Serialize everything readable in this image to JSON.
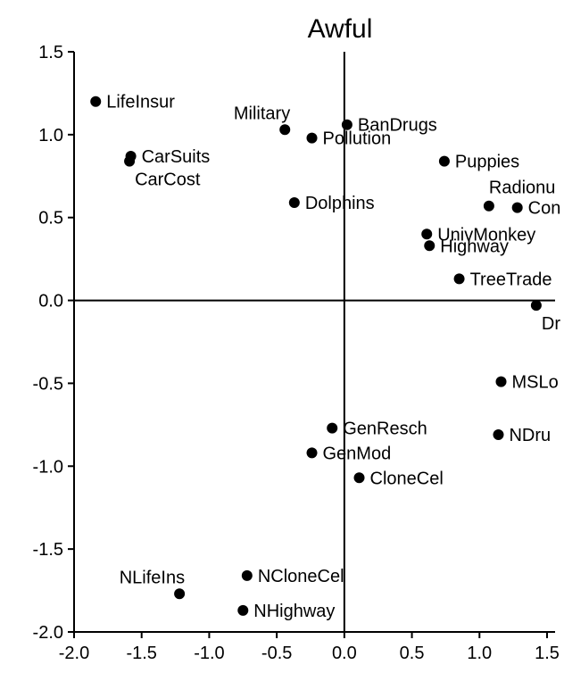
{
  "chart_data": {
    "type": "scatter",
    "title": "Awful",
    "xlabel": "",
    "ylabel": "",
    "xlim": [
      -2.0,
      1.5
    ],
    "ylim": [
      -2.0,
      1.5
    ],
    "x_ticks": [
      "-2.0",
      "-1.5",
      "-1.0",
      "-0.5",
      "0.0",
      "0.5",
      "1.0",
      "1.5"
    ],
    "y_ticks": [
      "1.5",
      "1.0",
      "0.5",
      "0.0",
      "-0.5",
      "-1.0",
      "-1.5",
      "-2.0"
    ],
    "grid": false,
    "marker_color": "#000000",
    "points": [
      {
        "label": "LifeInsur",
        "x": -1.84,
        "y": 1.2,
        "label_pos": "right"
      },
      {
        "label": "CarSuits",
        "x": -1.58,
        "y": 0.87,
        "label_pos": "right"
      },
      {
        "label": "CarCost",
        "x": -1.59,
        "y": 0.84,
        "label_pos": "below-right"
      },
      {
        "label": "Military",
        "x": -0.44,
        "y": 1.03,
        "label_pos": "above-left"
      },
      {
        "label": "BanDrugs",
        "x": 0.02,
        "y": 1.06,
        "label_pos": "right"
      },
      {
        "label": "Pollution",
        "x": -0.24,
        "y": 0.98,
        "label_pos": "right"
      },
      {
        "label": "Dolphins",
        "x": -0.37,
        "y": 0.59,
        "label_pos": "right"
      },
      {
        "label": "Puppies",
        "x": 0.74,
        "y": 0.84,
        "label_pos": "right"
      },
      {
        "label": "Radionu",
        "x": 1.07,
        "y": 0.57,
        "label_pos": "above-right"
      },
      {
        "label": "Con",
        "x": 1.28,
        "y": 0.56,
        "label_pos": "right"
      },
      {
        "label": "UnivMonkey",
        "x": 0.61,
        "y": 0.4,
        "label_pos": "right"
      },
      {
        "label": "Highway",
        "x": 0.63,
        "y": 0.33,
        "label_pos": "right"
      },
      {
        "label": "TreeTrade",
        "x": 0.85,
        "y": 0.13,
        "label_pos": "right"
      },
      {
        "label": "Dr",
        "x": 1.42,
        "y": -0.03,
        "label_pos": "below-right"
      },
      {
        "label": "MSLo",
        "x": 1.16,
        "y": -0.49,
        "label_pos": "right"
      },
      {
        "label": "GenResch",
        "x": -0.09,
        "y": -0.77,
        "label_pos": "right"
      },
      {
        "label": "NDru",
        "x": 1.14,
        "y": -0.81,
        "label_pos": "right"
      },
      {
        "label": "GenMod",
        "x": -0.24,
        "y": -0.92,
        "label_pos": "right"
      },
      {
        "label": "CloneCel",
        "x": 0.11,
        "y": -1.07,
        "label_pos": "right"
      },
      {
        "label": "NLifeIns",
        "x": -1.22,
        "y": -1.77,
        "label_pos": "above-left"
      },
      {
        "label": "NCloneCel",
        "x": -0.72,
        "y": -1.66,
        "label_pos": "right"
      },
      {
        "label": "NHighway",
        "x": -0.75,
        "y": -1.87,
        "label_pos": "right"
      }
    ]
  }
}
